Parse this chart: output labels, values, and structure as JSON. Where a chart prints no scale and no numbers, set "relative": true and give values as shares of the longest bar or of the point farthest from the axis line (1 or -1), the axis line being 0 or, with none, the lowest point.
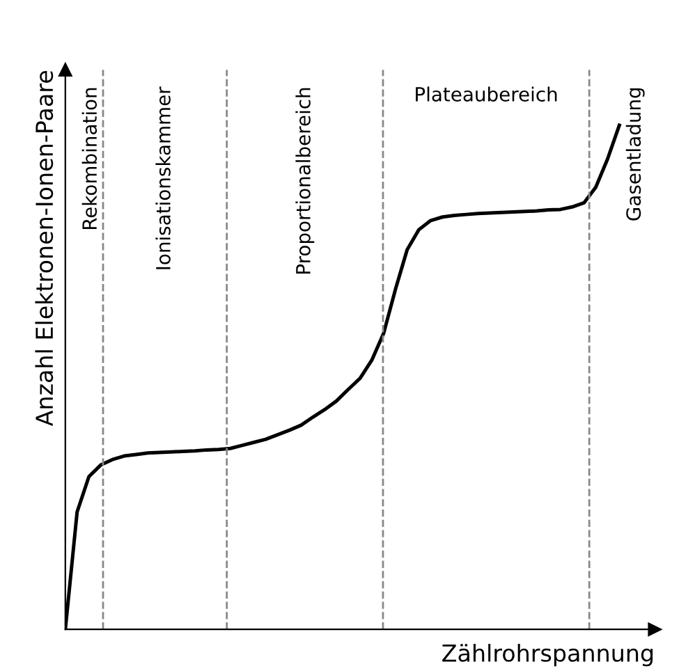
{
  "chart_data": {
    "type": "line",
    "relative": true,
    "xlabel": "Zählrohrspannung",
    "ylabel": "Anzahl Elektronen-Ionen-Paare",
    "categories": [
      null,
      null,
      null,
      null,
      null,
      null,
      null,
      null,
      null,
      null,
      null,
      null,
      null,
      null,
      null,
      null,
      null,
      null,
      null,
      null,
      null,
      null,
      null,
      null,
      null,
      null,
      null,
      null,
      null,
      null,
      null,
      null,
      null,
      null,
      null,
      null,
      null,
      null,
      null,
      null,
      null,
      null,
      null,
      null,
      null,
      null,
      null,
      null
    ],
    "series": [
      {
        "color": "#000000",
        "values": [
          0,
          0.233,
          0.303,
          0.326,
          0.337,
          0.344,
          0.347,
          0.35,
          0.351,
          0.352,
          0.353,
          0.354,
          0.356,
          0.357,
          0.359,
          0.365,
          0.371,
          0.377,
          0.386,
          0.395,
          0.405,
          0.421,
          0.436,
          0.453,
          0.476,
          0.498,
          0.534,
          0.587,
          0.674,
          0.753,
          0.793,
          0.811,
          0.818,
          0.821,
          0.823,
          0.825,
          0.826,
          0.827,
          0.828,
          0.829,
          0.83,
          0.832,
          0.833,
          0.838,
          0.846,
          0.877,
          0.933,
          1
        ]
      }
    ],
    "marker": "none",
    "line_style": "solid",
    "annotations": [
      "Rekombination",
      "Ionisationskammer",
      "Proportionalbereich",
      "Plateaubereich",
      "Gasentladung"
    ]
  }
}
